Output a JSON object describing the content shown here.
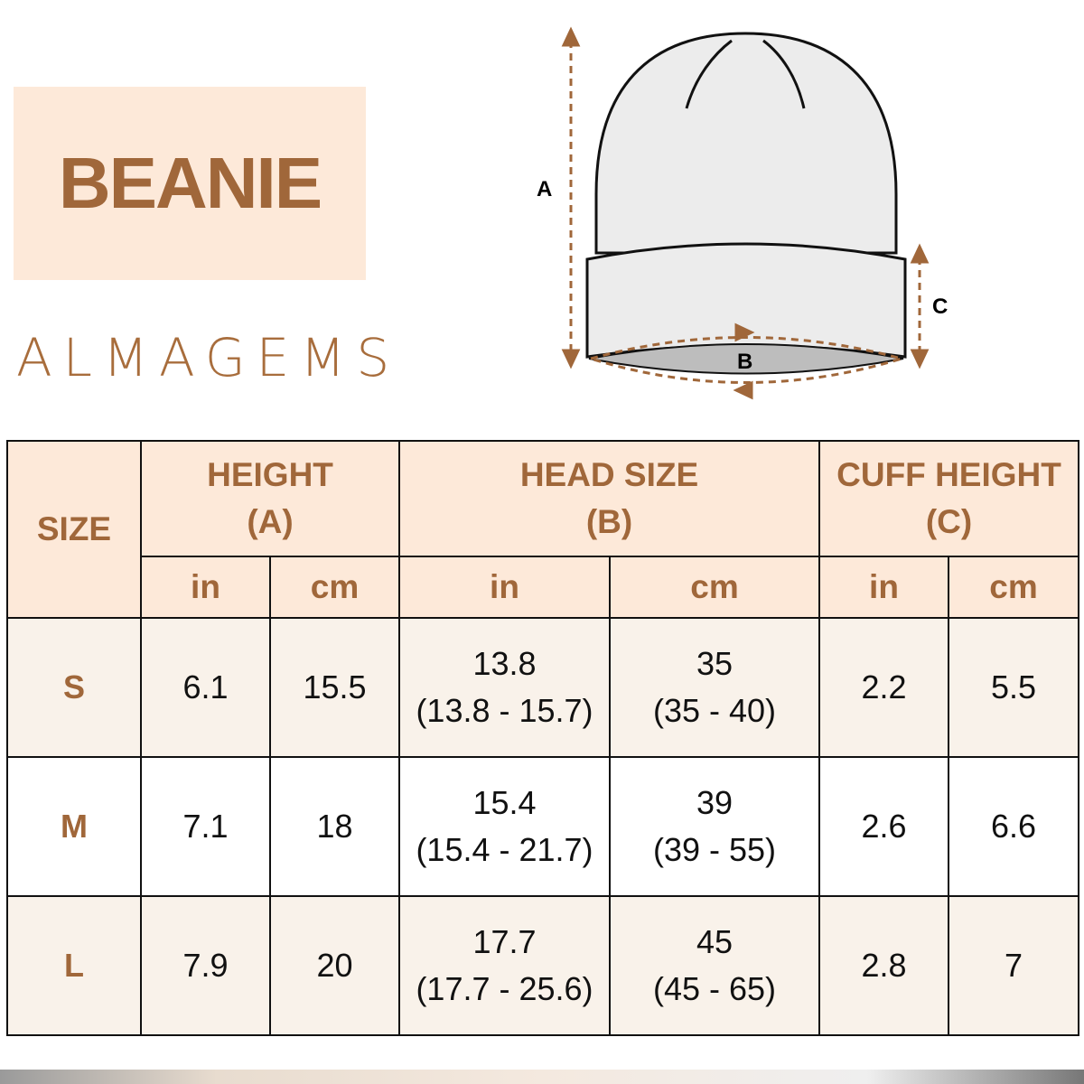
{
  "title": "BEANIE",
  "brand": "ALMAGEMS",
  "diagram": {
    "label_a": "A",
    "label_b": "B",
    "label_c": "C"
  },
  "colors": {
    "accent": "#a0673a",
    "header_bg": "#fde9d9",
    "row_bg": "#f9f2ea"
  },
  "table": {
    "size_header": "SIZE",
    "groups": [
      {
        "title": "HEIGHT",
        "sub": "(A)"
      },
      {
        "title": "HEAD SIZE",
        "sub": "(B)"
      },
      {
        "title": "CUFF HEIGHT",
        "sub": "(C)"
      }
    ],
    "units": [
      "in",
      "cm",
      "in",
      "cm",
      "in",
      "cm"
    ],
    "rows": [
      {
        "size": "S",
        "h_in": "6.1",
        "h_cm": "15.5",
        "hs_in": "13.8",
        "hs_in_range": "(13.8 - 15.7)",
        "hs_cm": "35",
        "hs_cm_range": "(35 - 40)",
        "c_in": "2.2",
        "c_cm": "5.5"
      },
      {
        "size": "M",
        "h_in": "7.1",
        "h_cm": "18",
        "hs_in": "15.4",
        "hs_in_range": "(15.4 - 21.7)",
        "hs_cm": "39",
        "hs_cm_range": "(39 - 55)",
        "c_in": "2.6",
        "c_cm": "6.6"
      },
      {
        "size": "L",
        "h_in": "7.9",
        "h_cm": "20",
        "hs_in": "17.7",
        "hs_in_range": "(17.7 - 25.6)",
        "hs_cm": "45",
        "hs_cm_range": "(45 - 65)",
        "c_in": "2.8",
        "c_cm": "7"
      }
    ]
  }
}
